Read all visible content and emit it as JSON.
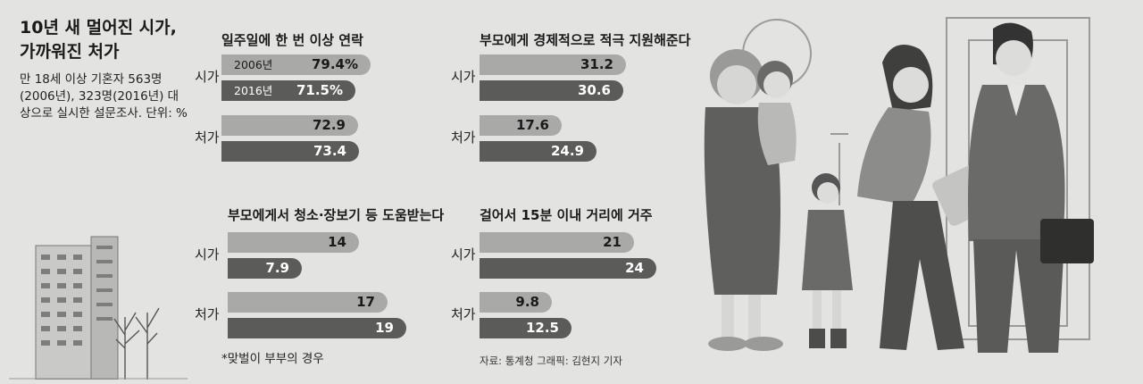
{
  "title": "10년 새 멀어진 시가, 가까워진 처가",
  "subtitle": "만 18세 이상 기혼자 563명(2006년), 323명(2016년) 대상으로 실시한 설문조사. 단위: %",
  "footnote": "*맞벌이 부부의 경우",
  "source": "자료: 통계청    그래픽: 김현지 기자",
  "colors": {
    "y2006": "#a9a9a7",
    "y2016": "#5b5b59",
    "background": "#e3e3e1"
  },
  "chart_data": [
    {
      "type": "bar",
      "title": "일주일에 한 번 이상 연락",
      "categories": [
        "시가",
        "처가"
      ],
      "series": [
        {
          "name": "2006년",
          "values": [
            79.4,
            72.9
          ],
          "labels": [
            "79.4%",
            "72.9"
          ]
        },
        {
          "name": "2016년",
          "values": [
            71.5,
            73.4
          ],
          "labels": [
            "71.5%",
            "73.4"
          ]
        }
      ],
      "xlim": [
        0,
        100
      ]
    },
    {
      "type": "bar",
      "title": "부모에게 경제적으로 적극 지원해준다",
      "categories": [
        "시가",
        "처가"
      ],
      "series": [
        {
          "values": [
            31.2,
            17.6
          ],
          "labels": [
            "31.2",
            "17.6"
          ]
        },
        {
          "values": [
            30.6,
            24.9
          ],
          "labels": [
            "30.6",
            "24.9"
          ]
        }
      ],
      "xlim": [
        0,
        40
      ]
    },
    {
      "type": "bar",
      "title": "부모에게서 청소·장보기 등 도움받는다",
      "categories": [
        "시가",
        "처가"
      ],
      "series": [
        {
          "values": [
            14,
            17
          ],
          "labels": [
            "14",
            "17"
          ]
        },
        {
          "values": [
            7.9,
            19
          ],
          "labels": [
            "7.9",
            "19"
          ]
        }
      ],
      "xlim": [
        0,
        20
      ]
    },
    {
      "type": "bar",
      "title": "걸어서 15분 이내 거리에 거주",
      "categories": [
        "시가",
        "처가"
      ],
      "series": [
        {
          "values": [
            21,
            9.8
          ],
          "labels": [
            "21",
            "9.8"
          ]
        },
        {
          "values": [
            24,
            12.5
          ],
          "labels": [
            "24",
            "12.5"
          ]
        }
      ],
      "xlim": [
        0,
        25.5
      ]
    }
  ]
}
